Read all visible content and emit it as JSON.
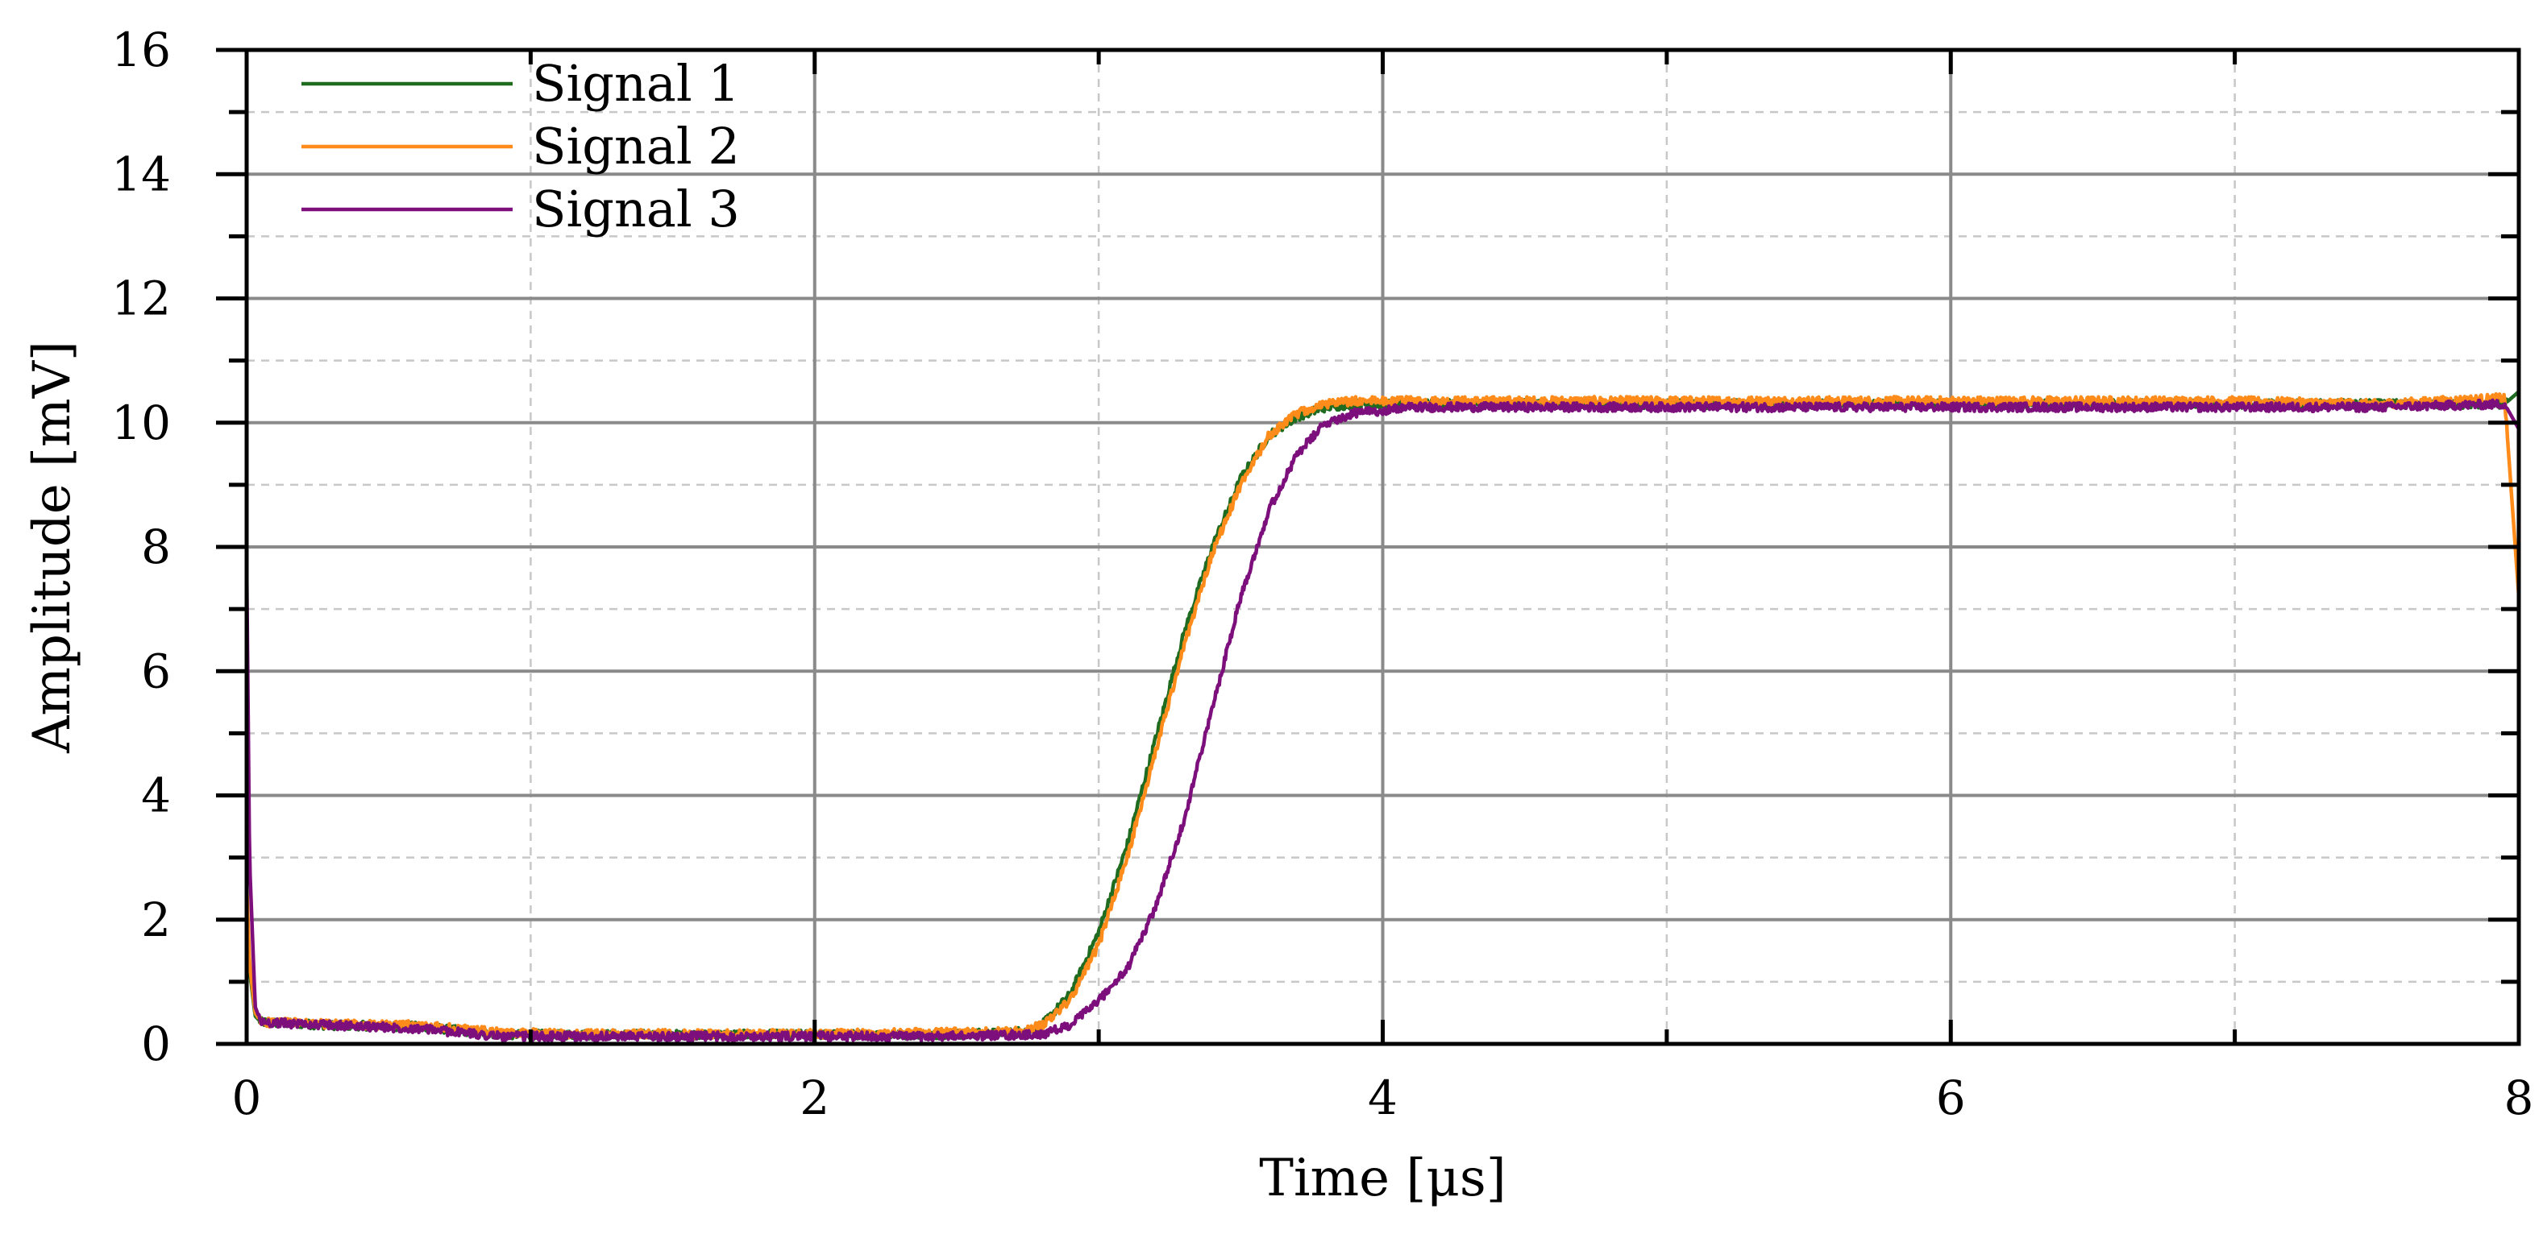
{
  "chart_data": {
    "type": "line",
    "title": "",
    "xlabel": "Time [μs]",
    "ylabel": "Amplitude [mV]",
    "xlim": [
      0,
      8
    ],
    "ylim": [
      0,
      16
    ],
    "x_ticks": [
      "0",
      "2",
      "4",
      "6",
      "8"
    ],
    "y_ticks": [
      "0",
      "2",
      "4",
      "6",
      "8",
      "10",
      "12",
      "14",
      "16"
    ],
    "grid": true,
    "legend_position": "top-left",
    "series": [
      {
        "name": "Signal 1",
        "color": "#1f6b1f",
        "x": [
          0,
          0.01,
          0.03,
          0.05,
          0.3,
          0.6,
          0.9,
          1.2,
          1.6,
          2.0,
          2.4,
          2.7,
          2.8,
          2.9,
          3.0,
          3.1,
          3.2,
          3.3,
          3.4,
          3.5,
          3.6,
          3.7,
          3.8,
          3.9,
          4.0,
          4.5,
          5.0,
          5.5,
          6.0,
          6.5,
          7.0,
          7.5,
          7.95,
          8.0
        ],
        "y": [
          2.3,
          1.2,
          0.45,
          0.35,
          0.3,
          0.28,
          0.15,
          0.15,
          0.15,
          0.15,
          0.15,
          0.18,
          0.3,
          0.8,
          1.8,
          3.2,
          4.9,
          6.6,
          8.0,
          9.1,
          9.8,
          10.1,
          10.25,
          10.3,
          10.3,
          10.3,
          10.3,
          10.3,
          10.3,
          10.3,
          10.3,
          10.3,
          10.3,
          10.5
        ]
      },
      {
        "name": "Signal 2",
        "color": "#ff8c1a",
        "x": [
          0,
          0.01,
          0.03,
          0.05,
          0.3,
          0.6,
          0.9,
          1.2,
          1.6,
          2.0,
          2.4,
          2.7,
          2.8,
          2.9,
          3.0,
          3.1,
          3.2,
          3.3,
          3.4,
          3.5,
          3.6,
          3.7,
          3.8,
          3.9,
          4.0,
          4.5,
          5.0,
          5.5,
          6.0,
          6.5,
          7.0,
          7.5,
          7.95,
          8.0
        ],
        "y": [
          2.6,
          1.3,
          0.5,
          0.35,
          0.32,
          0.3,
          0.18,
          0.16,
          0.16,
          0.16,
          0.18,
          0.2,
          0.3,
          0.7,
          1.6,
          3.0,
          4.7,
          6.4,
          7.9,
          9.0,
          9.8,
          10.15,
          10.3,
          10.35,
          10.35,
          10.35,
          10.35,
          10.35,
          10.35,
          10.35,
          10.35,
          10.3,
          10.4,
          7.2
        ]
      },
      {
        "name": "Signal 3",
        "color": "#7d0f7d",
        "x": [
          0,
          0.01,
          0.03,
          0.05,
          0.3,
          0.6,
          0.9,
          1.2,
          1.6,
          2.0,
          2.4,
          2.8,
          2.9,
          3.0,
          3.1,
          3.2,
          3.3,
          3.4,
          3.5,
          3.6,
          3.7,
          3.8,
          3.9,
          4.0,
          4.1,
          4.5,
          5.0,
          5.5,
          6.0,
          6.5,
          7.0,
          7.5,
          7.95,
          8.0
        ],
        "y": [
          7.8,
          3.0,
          0.6,
          0.35,
          0.3,
          0.25,
          0.12,
          0.12,
          0.12,
          0.12,
          0.12,
          0.15,
          0.3,
          0.7,
          1.2,
          2.2,
          3.6,
          5.4,
          7.2,
          8.6,
          9.5,
          10.0,
          10.15,
          10.2,
          10.25,
          10.25,
          10.25,
          10.25,
          10.25,
          10.25,
          10.25,
          10.25,
          10.3,
          9.9
        ]
      }
    ]
  }
}
